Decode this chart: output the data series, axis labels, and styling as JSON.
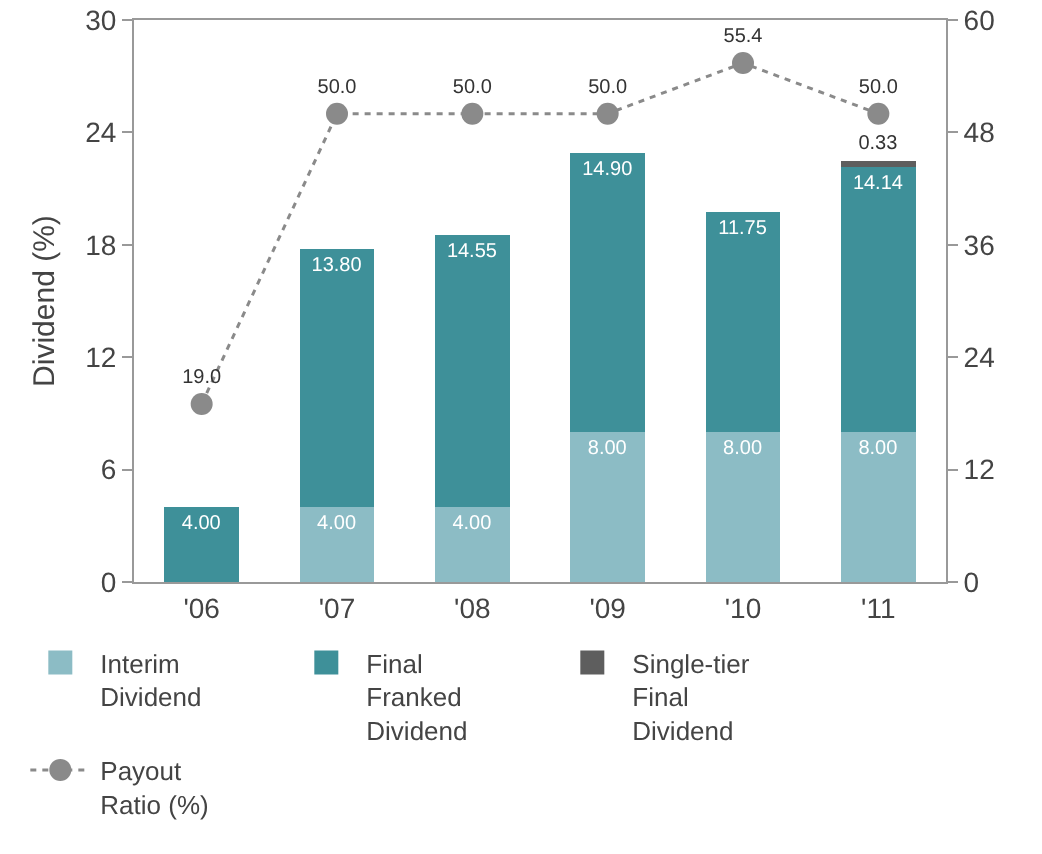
{
  "chart_data": {
    "type": "bar",
    "stacked": true,
    "ylabel": "Dividend (%)",
    "categories": [
      "'06",
      "'07",
      "'08",
      "'09",
      "'10",
      "'11"
    ],
    "series": [
      {
        "name": "Interim Dividend",
        "color": "#8cbcc5",
        "values": [
          null,
          4.0,
          4.0,
          8.0,
          8.0,
          8.0
        ],
        "value_labels": [
          null,
          "4.00",
          "4.00",
          "8.00",
          "8.00",
          "8.00"
        ]
      },
      {
        "name": "Final Franked Dividend",
        "color": "#3e9099",
        "values": [
          4.0,
          13.8,
          14.55,
          14.9,
          11.75,
          14.14
        ],
        "value_labels": [
          "4.00",
          "13.80",
          "14.55",
          "14.90",
          "11.75",
          "14.14"
        ]
      },
      {
        "name": "Single-tier Final Dividend",
        "color": "#5e5e5e",
        "values": [
          null,
          null,
          null,
          null,
          null,
          0.33
        ],
        "value_labels": [
          null,
          null,
          null,
          null,
          null,
          "0.33"
        ]
      },
      {
        "name": "Payout Ratio (%)",
        "type": "line",
        "axis": "y2",
        "color": "#8a8a8a",
        "line_style": "dotted",
        "marker": "circle",
        "values": [
          19.0,
          50.0,
          50.0,
          50.0,
          55.4,
          50.0
        ],
        "value_labels": [
          "19.0",
          "50.0",
          "50.0",
          "50.0",
          "55.4",
          "50.0"
        ]
      }
    ],
    "ylim": [
      0,
      30
    ],
    "yticks": [
      0,
      6,
      12,
      18,
      24,
      30
    ],
    "y2lim": [
      0,
      60
    ],
    "y2ticks": [
      0,
      12,
      24,
      36,
      48,
      60
    ],
    "grid": false,
    "legend": "bottom"
  }
}
